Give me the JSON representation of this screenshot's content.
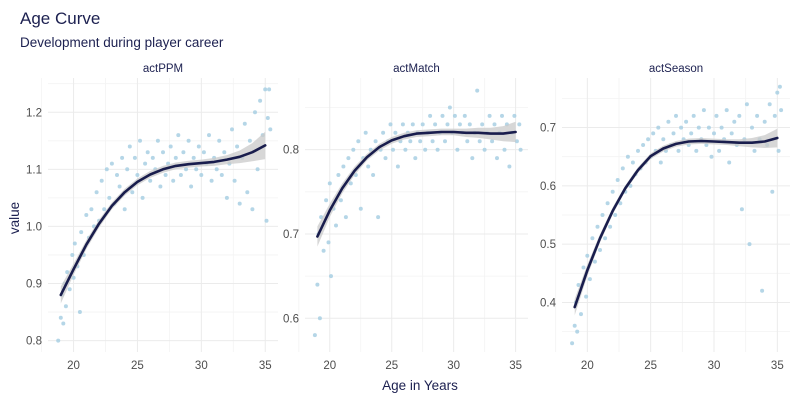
{
  "title": "Age Curve",
  "subtitle": "Development during player career",
  "xlabel": "Age in Years",
  "ylabel": "value",
  "colors": {
    "points": "#a8cfe3",
    "line": "#191d4d",
    "ribbon": "#c9c9c9",
    "grid": "#ebebeb",
    "title": "#1c2050",
    "tick": "#4d4d4d"
  },
  "chart_data": [
    {
      "type": "scatter",
      "panel_label": "actPPM",
      "xlim": [
        18,
        36
      ],
      "ylim": [
        0.78,
        1.26
      ],
      "x_ticks": [
        20,
        25,
        30,
        35
      ],
      "y_ticks": [
        0.8,
        0.9,
        1.0,
        1.1,
        1.2
      ],
      "y_tick_labels": [
        "0.8",
        "0.9",
        "1.0",
        "1.1",
        "1.2"
      ],
      "points": [
        [
          18.8,
          0.8
        ],
        [
          19,
          0.84
        ],
        [
          19.1,
          0.88
        ],
        [
          19.2,
          0.83
        ],
        [
          19.3,
          0.9
        ],
        [
          19.4,
          0.86
        ],
        [
          19.5,
          0.92
        ],
        [
          19.7,
          0.89
        ],
        [
          19.9,
          0.95
        ],
        [
          20,
          0.91
        ],
        [
          20.1,
          0.97
        ],
        [
          20.3,
          0.93
        ],
        [
          20.5,
          0.85
        ],
        [
          20.6,
          0.99
        ],
        [
          20.8,
          0.95
        ],
        [
          21,
          1.02
        ],
        [
          21.2,
          0.98
        ],
        [
          21.4,
          1.03
        ],
        [
          21.6,
          1.0
        ],
        [
          21.8,
          1.06
        ],
        [
          22,
          1.01
        ],
        [
          22.2,
          1.08
        ],
        [
          22.4,
          1.03
        ],
        [
          22.6,
          1.1
        ],
        [
          22.8,
          1.05
        ],
        [
          23,
          1.11
        ],
        [
          23.2,
          1.04
        ],
        [
          23.4,
          1.09
        ],
        [
          23.6,
          1.07
        ],
        [
          23.8,
          1.12
        ],
        [
          24,
          1.03
        ],
        [
          24.2,
          1.1
        ],
        [
          24.4,
          1.14
        ],
        [
          24.6,
          1.06
        ],
        [
          24.8,
          1.12
        ],
        [
          25,
          1.09
        ],
        [
          25.2,
          1.15
        ],
        [
          25.4,
          1.05
        ],
        [
          25.6,
          1.11
        ],
        [
          25.8,
          1.13
        ],
        [
          26,
          1.08
        ],
        [
          26.2,
          1.12
        ],
        [
          26.4,
          1.1
        ],
        [
          26.6,
          1.15
        ],
        [
          26.8,
          1.07
        ],
        [
          27,
          1.13
        ],
        [
          27.2,
          1.09
        ],
        [
          27.4,
          1.11
        ],
        [
          27.6,
          1.14
        ],
        [
          27.8,
          1.08
        ],
        [
          28,
          1.12
        ],
        [
          28.2,
          1.16
        ],
        [
          28.4,
          1.09
        ],
        [
          28.6,
          1.13
        ],
        [
          28.8,
          1.1
        ],
        [
          29,
          1.15
        ],
        [
          29.2,
          1.07
        ],
        [
          29.4,
          1.12
        ],
        [
          29.6,
          1.1
        ],
        [
          29.8,
          1.14
        ],
        [
          30,
          1.09
        ],
        [
          30.2,
          1.13
        ],
        [
          30.4,
          1.11
        ],
        [
          30.6,
          1.16
        ],
        [
          30.8,
          1.08
        ],
        [
          31,
          1.12
        ],
        [
          31.2,
          1.1
        ],
        [
          31.4,
          1.15
        ],
        [
          31.6,
          1.09
        ],
        [
          31.8,
          1.13
        ],
        [
          32,
          1.05
        ],
        [
          32.2,
          1.11
        ],
        [
          32.4,
          1.17
        ],
        [
          32.6,
          1.08
        ],
        [
          32.8,
          1.14
        ],
        [
          33,
          1.04
        ],
        [
          33.2,
          1.12
        ],
        [
          33.4,
          1.18
        ],
        [
          33.6,
          1.06
        ],
        [
          33.8,
          1.15
        ],
        [
          34,
          1.03
        ],
        [
          34.2,
          1.2
        ],
        [
          34.4,
          1.1
        ],
        [
          34.6,
          1.22
        ],
        [
          34.8,
          1.16
        ],
        [
          35,
          1.24
        ],
        [
          35.1,
          1.01
        ],
        [
          35.2,
          1.19
        ],
        [
          35.3,
          1.24
        ],
        [
          35.4,
          1.17
        ]
      ],
      "fit": [
        [
          19,
          0.88
        ],
        [
          20,
          0.925
        ],
        [
          21,
          0.968
        ],
        [
          22,
          1.005
        ],
        [
          23,
          1.036
        ],
        [
          24,
          1.06
        ],
        [
          25,
          1.078
        ],
        [
          26,
          1.091
        ],
        [
          27,
          1.1
        ],
        [
          28,
          1.106
        ],
        [
          29,
          1.109
        ],
        [
          30,
          1.111
        ],
        [
          31,
          1.113
        ],
        [
          32,
          1.117
        ],
        [
          33,
          1.122
        ],
        [
          34,
          1.13
        ],
        [
          35,
          1.142
        ]
      ],
      "ribbon_halfwidth": [
        0.015,
        0.01,
        0.008,
        0.007,
        0.006,
        0.006,
        0.006,
        0.006,
        0.006,
        0.006,
        0.006,
        0.006,
        0.007,
        0.008,
        0.011,
        0.016,
        0.024
      ]
    },
    {
      "type": "scatter",
      "panel_label": "actMatch",
      "xlim": [
        18,
        36
      ],
      "ylim": [
        0.56,
        0.885
      ],
      "x_ticks": [
        20,
        25,
        30,
        35
      ],
      "y_ticks": [
        0.6,
        0.7,
        0.8
      ],
      "y_tick_labels": [
        "0.6",
        "0.7",
        "0.8"
      ],
      "points": [
        [
          18.8,
          0.58
        ],
        [
          19,
          0.64
        ],
        [
          19.1,
          0.7
        ],
        [
          19.2,
          0.6
        ],
        [
          19.3,
          0.72
        ],
        [
          19.5,
          0.68
        ],
        [
          19.7,
          0.74
        ],
        [
          19.9,
          0.69
        ],
        [
          20,
          0.76
        ],
        [
          20.1,
          0.65
        ],
        [
          20.3,
          0.73
        ],
        [
          20.5,
          0.71
        ],
        [
          20.7,
          0.77
        ],
        [
          20.9,
          0.74
        ],
        [
          21.1,
          0.78
        ],
        [
          21.3,
          0.72
        ],
        [
          21.5,
          0.79
        ],
        [
          21.7,
          0.76
        ],
        [
          21.9,
          0.8
        ],
        [
          22.1,
          0.77
        ],
        [
          22.3,
          0.81
        ],
        [
          22.5,
          0.73
        ],
        [
          22.7,
          0.79
        ],
        [
          22.9,
          0.82
        ],
        [
          23.1,
          0.78
        ],
        [
          23.3,
          0.8
        ],
        [
          23.5,
          0.77
        ],
        [
          23.7,
          0.81
        ],
        [
          23.9,
          0.72
        ],
        [
          24.1,
          0.8
        ],
        [
          24.3,
          0.82
        ],
        [
          24.5,
          0.79
        ],
        [
          24.7,
          0.81
        ],
        [
          24.9,
          0.83
        ],
        [
          25.1,
          0.8
        ],
        [
          25.3,
          0.82
        ],
        [
          25.5,
          0.78
        ],
        [
          25.7,
          0.81
        ],
        [
          25.9,
          0.83
        ],
        [
          26.1,
          0.8
        ],
        [
          26.3,
          0.82
        ],
        [
          26.5,
          0.81
        ],
        [
          26.7,
          0.83
        ],
        [
          26.9,
          0.79
        ],
        [
          27.1,
          0.82
        ],
        [
          27.3,
          0.81
        ],
        [
          27.5,
          0.83
        ],
        [
          27.7,
          0.8
        ],
        [
          27.9,
          0.82
        ],
        [
          28.1,
          0.84
        ],
        [
          28.3,
          0.81
        ],
        [
          28.5,
          0.83
        ],
        [
          28.7,
          0.8
        ],
        [
          28.9,
          0.82
        ],
        [
          29.1,
          0.84
        ],
        [
          29.3,
          0.81
        ],
        [
          29.5,
          0.83
        ],
        [
          29.7,
          0.85
        ],
        [
          29.9,
          0.82
        ],
        [
          30.1,
          0.84
        ],
        [
          30.3,
          0.8
        ],
        [
          30.5,
          0.83
        ],
        [
          30.7,
          0.82
        ],
        [
          30.9,
          0.84
        ],
        [
          31.1,
          0.81
        ],
        [
          31.3,
          0.83
        ],
        [
          31.5,
          0.79
        ],
        [
          31.7,
          0.82
        ],
        [
          31.9,
          0.87
        ],
        [
          32.1,
          0.81
        ],
        [
          32.3,
          0.83
        ],
        [
          32.5,
          0.8
        ],
        [
          32.7,
          0.82
        ],
        [
          32.9,
          0.84
        ],
        [
          33.1,
          0.81
        ],
        [
          33.3,
          0.83
        ],
        [
          33.5,
          0.79
        ],
        [
          33.7,
          0.82
        ],
        [
          33.9,
          0.84
        ],
        [
          34.1,
          0.8
        ],
        [
          34.3,
          0.83
        ],
        [
          34.5,
          0.78
        ],
        [
          34.7,
          0.82
        ],
        [
          34.9,
          0.84
        ],
        [
          35.1,
          0.81
        ],
        [
          35.3,
          0.83
        ],
        [
          35.4,
          0.8
        ]
      ],
      "fit": [
        [
          19,
          0.697
        ],
        [
          20,
          0.728
        ],
        [
          21,
          0.754
        ],
        [
          22,
          0.775
        ],
        [
          23,
          0.791
        ],
        [
          24,
          0.803
        ],
        [
          25,
          0.811
        ],
        [
          26,
          0.816
        ],
        [
          27,
          0.819
        ],
        [
          28,
          0.82
        ],
        [
          29,
          0.821
        ],
        [
          30,
          0.821
        ],
        [
          31,
          0.82
        ],
        [
          32,
          0.82
        ],
        [
          33,
          0.819
        ],
        [
          34,
          0.819
        ],
        [
          35,
          0.821
        ]
      ],
      "ribbon_halfwidth": [
        0.012,
        0.008,
        0.006,
        0.005,
        0.004,
        0.004,
        0.004,
        0.004,
        0.004,
        0.004,
        0.004,
        0.004,
        0.005,
        0.006,
        0.007,
        0.009,
        0.012
      ]
    },
    {
      "type": "scatter",
      "panel_label": "actSeason",
      "xlim": [
        18,
        36
      ],
      "ylim": [
        0.315,
        0.785
      ],
      "x_ticks": [
        20,
        25,
        30,
        35
      ],
      "y_ticks": [
        0.4,
        0.5,
        0.6,
        0.7
      ],
      "y_tick_labels": [
        "0.4",
        "0.5",
        "0.6",
        "0.7"
      ],
      "points": [
        [
          18.8,
          0.33
        ],
        [
          19,
          0.36
        ],
        [
          19.1,
          0.4
        ],
        [
          19.2,
          0.35
        ],
        [
          19.3,
          0.43
        ],
        [
          19.5,
          0.38
        ],
        [
          19.7,
          0.46
        ],
        [
          19.9,
          0.41
        ],
        [
          20,
          0.48
        ],
        [
          20.2,
          0.44
        ],
        [
          20.4,
          0.51
        ],
        [
          20.6,
          0.47
        ],
        [
          20.8,
          0.53
        ],
        [
          21,
          0.49
        ],
        [
          21.2,
          0.55
        ],
        [
          21.4,
          0.51
        ],
        [
          21.6,
          0.57
        ],
        [
          21.8,
          0.53
        ],
        [
          22,
          0.59
        ],
        [
          22.2,
          0.55
        ],
        [
          22.4,
          0.61
        ],
        [
          22.6,
          0.57
        ],
        [
          22.8,
          0.63
        ],
        [
          23,
          0.59
        ],
        [
          23.2,
          0.65
        ],
        [
          23.4,
          0.6
        ],
        [
          23.6,
          0.64
        ],
        [
          23.8,
          0.62
        ],
        [
          24,
          0.66
        ],
        [
          24.2,
          0.63
        ],
        [
          24.4,
          0.67
        ],
        [
          24.6,
          0.64
        ],
        [
          24.8,
          0.68
        ],
        [
          25,
          0.65
        ],
        [
          25.2,
          0.69
        ],
        [
          25.4,
          0.66
        ],
        [
          25.6,
          0.7
        ],
        [
          25.8,
          0.64
        ],
        [
          26,
          0.68
        ],
        [
          26.2,
          0.66
        ],
        [
          26.4,
          0.71
        ],
        [
          26.6,
          0.67
        ],
        [
          26.8,
          0.69
        ],
        [
          27,
          0.72
        ],
        [
          27.2,
          0.66
        ],
        [
          27.4,
          0.7
        ],
        [
          27.6,
          0.68
        ],
        [
          27.8,
          0.71
        ],
        [
          28,
          0.67
        ],
        [
          28.2,
          0.69
        ],
        [
          28.4,
          0.72
        ],
        [
          28.6,
          0.66
        ],
        [
          28.8,
          0.7
        ],
        [
          29,
          0.68
        ],
        [
          29.2,
          0.73
        ],
        [
          29.4,
          0.67
        ],
        [
          29.6,
          0.7
        ],
        [
          29.8,
          0.65
        ],
        [
          30,
          0.69
        ],
        [
          30.2,
          0.72
        ],
        [
          30.4,
          0.66
        ],
        [
          30.6,
          0.7
        ],
        [
          30.8,
          0.68
        ],
        [
          31,
          0.73
        ],
        [
          31.2,
          0.64
        ],
        [
          31.4,
          0.69
        ],
        [
          31.6,
          0.71
        ],
        [
          31.8,
          0.67
        ],
        [
          32,
          0.72
        ],
        [
          32.2,
          0.56
        ],
        [
          32.4,
          0.68
        ],
        [
          32.6,
          0.74
        ],
        [
          32.8,
          0.5
        ],
        [
          33,
          0.7
        ],
        [
          33.2,
          0.66
        ],
        [
          33.4,
          0.72
        ],
        [
          33.6,
          0.68
        ],
        [
          33.8,
          0.42
        ],
        [
          34,
          0.71
        ],
        [
          34.2,
          0.67
        ],
        [
          34.4,
          0.74
        ],
        [
          34.6,
          0.59
        ],
        [
          34.8,
          0.72
        ],
        [
          35,
          0.76
        ],
        [
          35.1,
          0.66
        ],
        [
          35.2,
          0.77
        ],
        [
          35.3,
          0.73
        ]
      ],
      "fit": [
        [
          19,
          0.392
        ],
        [
          20,
          0.455
        ],
        [
          21,
          0.51
        ],
        [
          22,
          0.557
        ],
        [
          23,
          0.596
        ],
        [
          24,
          0.627
        ],
        [
          25,
          0.651
        ],
        [
          26,
          0.664
        ],
        [
          27,
          0.672
        ],
        [
          28,
          0.676
        ],
        [
          29,
          0.677
        ],
        [
          30,
          0.676
        ],
        [
          31,
          0.675
        ],
        [
          32,
          0.674
        ],
        [
          33,
          0.674
        ],
        [
          34,
          0.676
        ],
        [
          35,
          0.682
        ]
      ],
      "ribbon_halfwidth": [
        0.014,
        0.01,
        0.007,
        0.006,
        0.005,
        0.005,
        0.005,
        0.005,
        0.005,
        0.005,
        0.005,
        0.005,
        0.005,
        0.006,
        0.008,
        0.011,
        0.016
      ]
    }
  ]
}
